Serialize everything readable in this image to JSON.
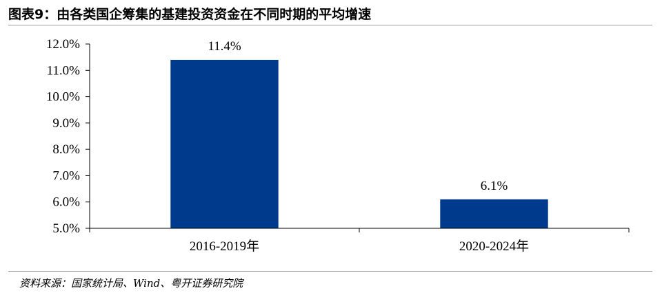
{
  "header": {
    "title": "图表9：由各类国企筹集的基建投资资金在不同时期的平均增速"
  },
  "footer": {
    "source": "资料来源：国家统计局、Wind、粤开证券研究院"
  },
  "colors": {
    "bar": "#003a8c",
    "axis": "#000000"
  },
  "chart_data": {
    "type": "bar",
    "categories": [
      "2016-2019年",
      "2020-2024年"
    ],
    "values": [
      11.4,
      6.1
    ],
    "value_labels": [
      "11.4%",
      "6.1%"
    ],
    "yticks": [
      5.0,
      6.0,
      7.0,
      8.0,
      9.0,
      10.0,
      11.0,
      12.0
    ],
    "ytick_labels": [
      "5.0%",
      "6.0%",
      "7.0%",
      "8.0%",
      "9.0%",
      "10.0%",
      "11.0%",
      "12.0%"
    ],
    "ylim": [
      5.0,
      12.0
    ],
    "grid": false,
    "legend": "none",
    "title": "",
    "xlabel": "",
    "ylabel": ""
  }
}
